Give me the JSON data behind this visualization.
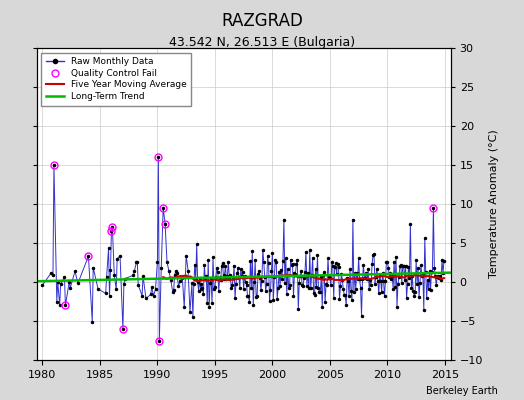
{
  "title": "RAZGRAD",
  "subtitle": "43.542 N, 26.513 E (Bulgaria)",
  "ylabel": "Temperature Anomaly (°C)",
  "xlim": [
    1979.5,
    2015.5
  ],
  "ylim": [
    -10,
    30
  ],
  "yticks": [
    -10,
    -5,
    0,
    5,
    10,
    15,
    20,
    25,
    30
  ],
  "xticks": [
    1980,
    1985,
    1990,
    1995,
    2000,
    2005,
    2010,
    2015
  ],
  "outer_bg": "#d8d8d8",
  "plot_bg": "#ffffff",
  "raw_line_color": "#3333cc",
  "raw_marker_color": "#000000",
  "qc_fail_color": "#ff00ff",
  "moving_avg_color": "#cc0000",
  "trend_color": "#00bb00",
  "watermark": "Berkeley Earth",
  "grid_color": "#cccccc",
  "title_fontsize": 12,
  "subtitle_fontsize": 9,
  "tick_fontsize": 8,
  "ylabel_fontsize": 8
}
